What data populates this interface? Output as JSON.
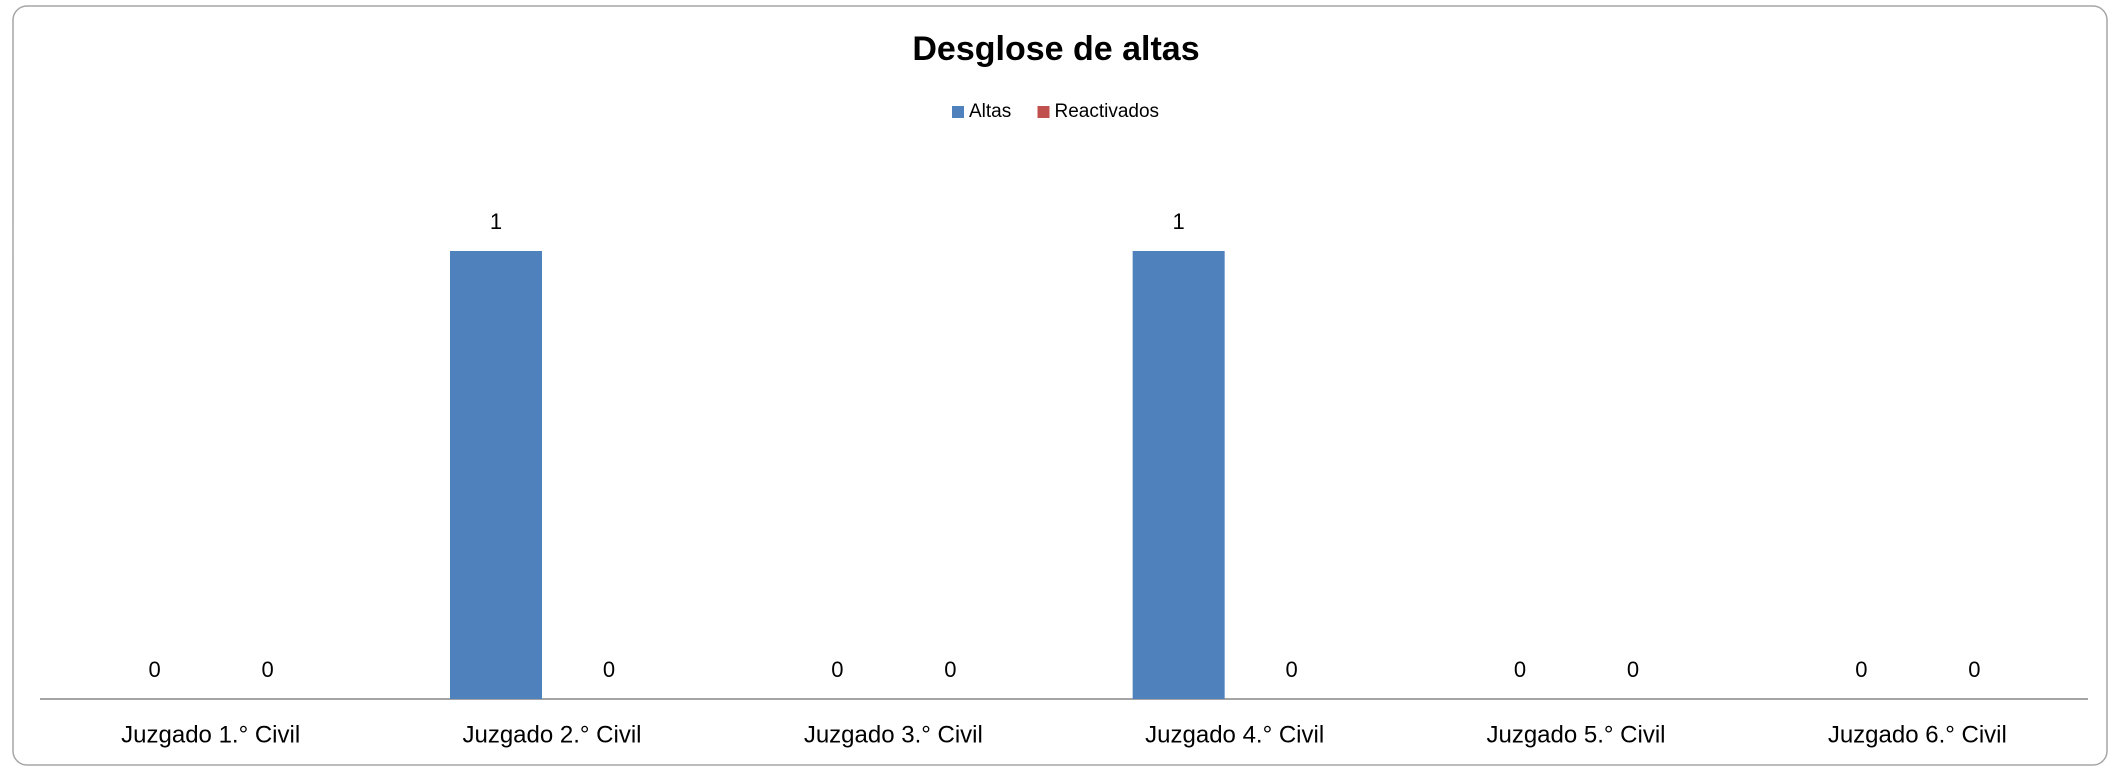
{
  "chart_data": {
    "type": "bar",
    "title": "Desglose de altas",
    "categories": [
      "Juzgado 1.° Civil",
      "Juzgado 2.° Civil",
      "Juzgado 3.° Civil",
      "Juzgado 4.° Civil",
      "Juzgado 5.° Civil",
      "Juzgado 6.° Civil"
    ],
    "series": [
      {
        "name": "Altas",
        "color": "#4f81bd",
        "values": [
          0,
          1,
          0,
          1,
          0,
          0
        ]
      },
      {
        "name": "Reactivados",
        "color": "#c0504d",
        "values": [
          0,
          0,
          0,
          0,
          0,
          0
        ]
      }
    ],
    "legend": "top"
  }
}
